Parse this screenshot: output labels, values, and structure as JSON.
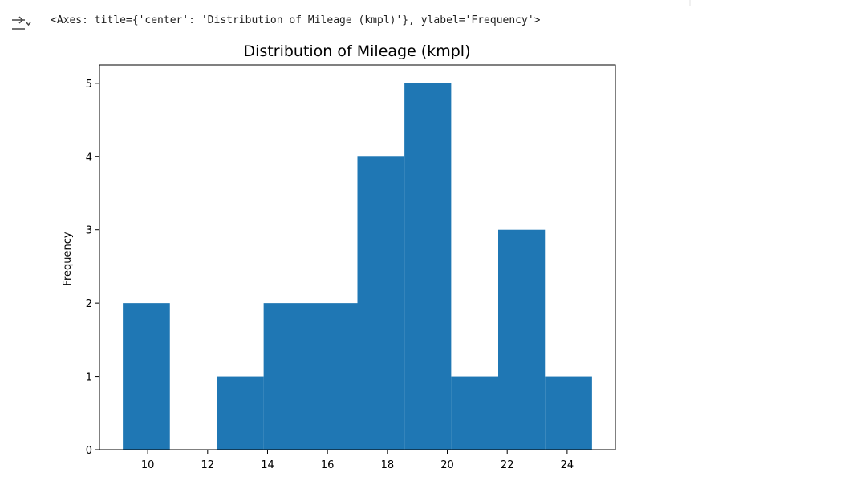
{
  "output_text": "<Axes: title={'center': 'Distribution of Mileage (kmpl)'}, ylabel='Frequency'>",
  "chart_data": {
    "type": "histogram",
    "title": "Distribution of Mileage (kmpl)",
    "y_label": "Frequency",
    "bins": [
      9.17,
      10.74,
      12.3,
      13.87,
      15.43,
      17.0,
      18.57,
      20.13,
      21.7,
      23.26,
      24.83
    ],
    "values": [
      2,
      0,
      1,
      2,
      2,
      4,
      5,
      1,
      3,
      1
    ],
    "color": "#1f77b4",
    "xlim": [
      8.39,
      25.61
    ],
    "xticks": [
      10,
      12,
      14,
      16,
      18,
      20,
      22,
      24
    ],
    "ylim": [
      0,
      5.25
    ],
    "yticks": [
      0,
      1,
      2,
      3,
      4,
      5
    ]
  }
}
